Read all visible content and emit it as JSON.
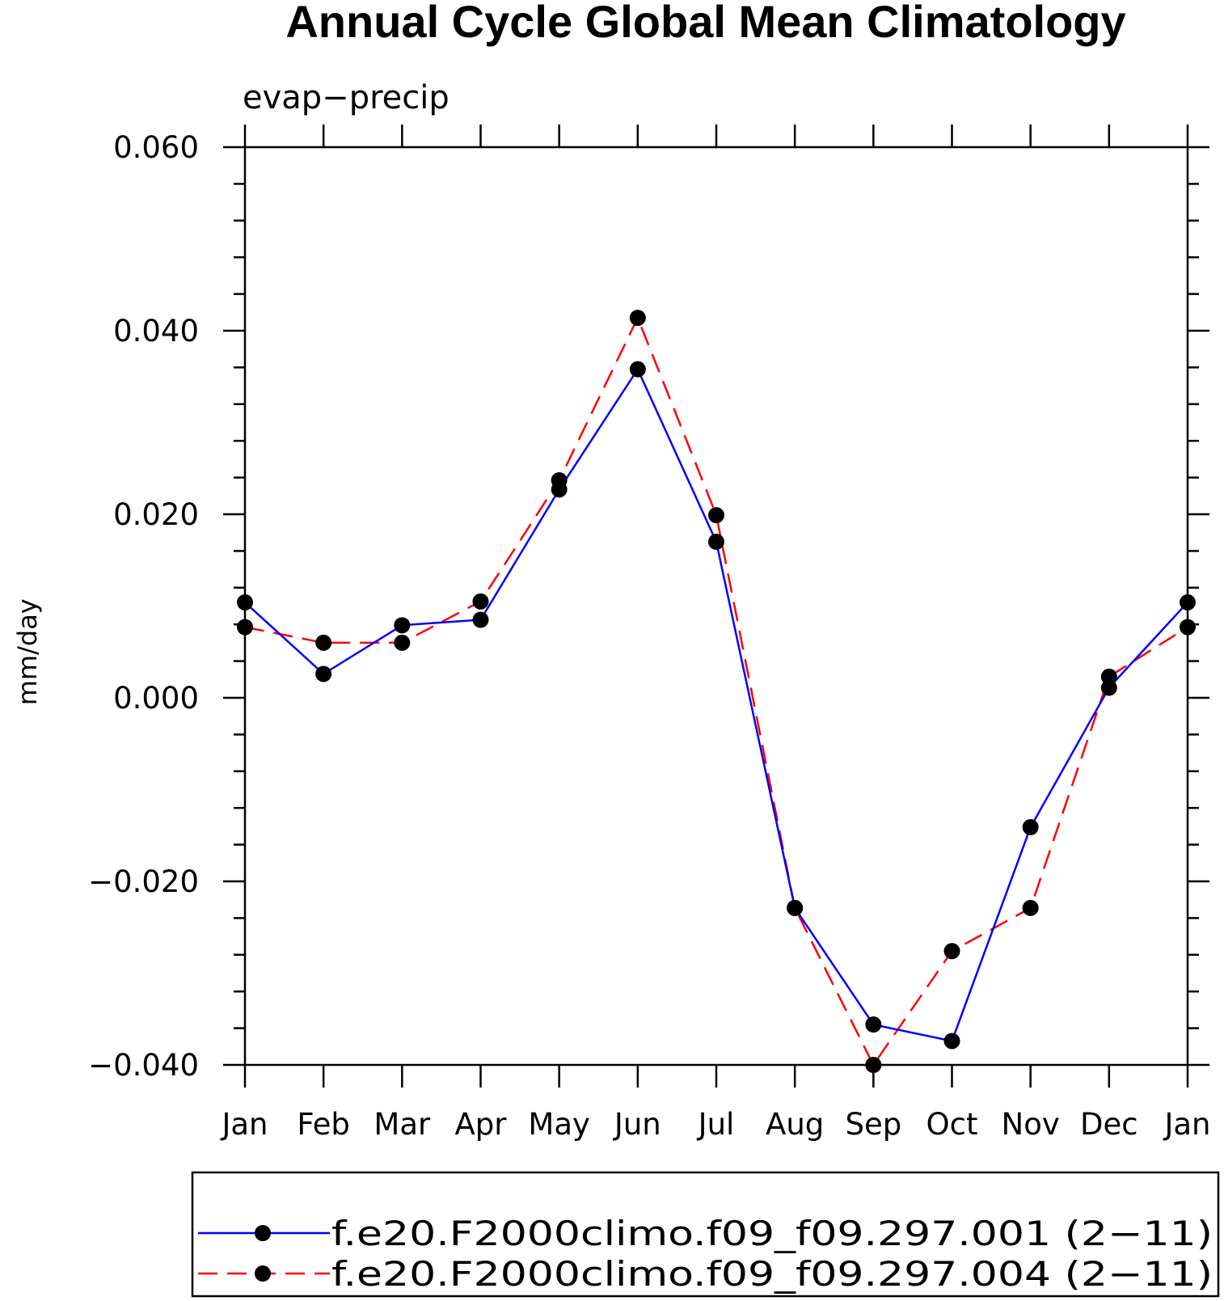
{
  "chart_data": {
    "type": "line",
    "title": "Annual Cycle Global Mean Climatology",
    "subtitle": "evap−precip",
    "ylabel": "mm/day",
    "xlabel": "",
    "categories": [
      "Jan",
      "Feb",
      "Mar",
      "Apr",
      "May",
      "Jun",
      "Jul",
      "Aug",
      "Sep",
      "Oct",
      "Nov",
      "Dec",
      "Jan"
    ],
    "ylim": [
      -0.04,
      0.06
    ],
    "yticks": [
      -0.04,
      -0.02,
      0.0,
      0.02,
      0.04,
      0.06
    ],
    "ytick_labels": [
      "−0.040",
      "−0.020",
      "0.000",
      "0.020",
      "0.040",
      "0.060"
    ],
    "legend_position": "bottom",
    "grid": false,
    "series": [
      {
        "name": "f.e20.F2000climo.f09_f09.297.001 (2−11)",
        "color": "#0000ff",
        "dash": "solid",
        "marker": "filled-circle",
        "values": [
          0.0104,
          0.0026,
          0.0079,
          0.0085,
          0.0227,
          0.0358,
          0.017,
          -0.0229,
          -0.0356,
          -0.0374,
          -0.0141,
          0.0011,
          0.0104
        ]
      },
      {
        "name": "f.e20.F2000climo.f09_f09.297.004 (2−11)",
        "color": "#ff0000",
        "dash": "dashed",
        "marker": "filled-circle",
        "values": [
          0.0077,
          0.006,
          0.006,
          0.0105,
          0.0237,
          0.0414,
          0.0199,
          -0.0229,
          -0.04,
          -0.0276,
          -0.0229,
          0.0023,
          0.0077
        ]
      }
    ]
  }
}
